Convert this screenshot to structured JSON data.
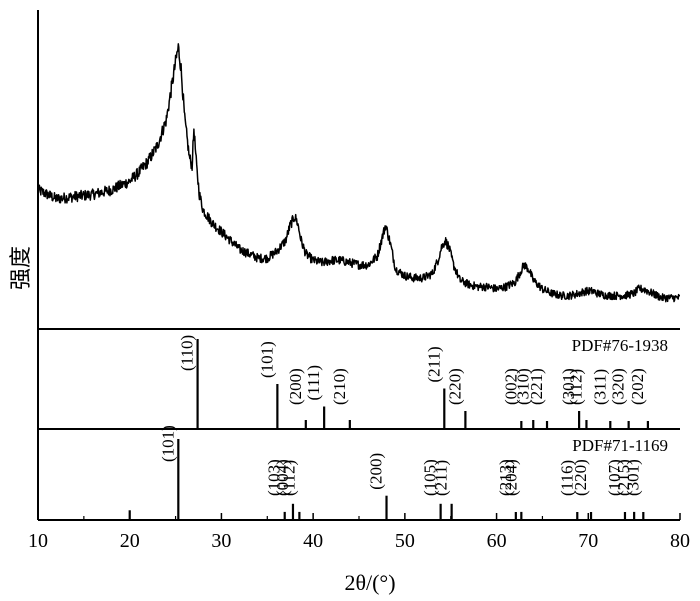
{
  "chart_data": {
    "type": "line",
    "title": "",
    "xlabel": "2θ/(°)",
    "ylabel": "强度",
    "xlim": [
      10,
      80
    ],
    "xticks": [
      10,
      20,
      30,
      40,
      50,
      60,
      70,
      80
    ],
    "grid": false,
    "series": [
      {
        "name": "",
        "x": [
          10,
          12,
          14,
          16,
          18,
          20,
          21,
          22,
          23,
          24,
          24.5,
          25,
          25.3,
          25.6,
          26,
          26.5,
          26.8,
          27,
          27.3,
          27.6,
          28,
          29,
          30,
          31,
          32,
          33,
          34,
          35,
          36,
          37,
          37.5,
          38,
          38.3,
          38.7,
          39.2,
          40,
          41,
          42,
          43,
          44,
          45,
          46,
          47,
          47.5,
          47.9,
          48.4,
          49,
          50,
          51,
          52,
          53,
          53.6,
          54,
          54.4,
          54.8,
          55.3,
          56,
          57,
          58,
          59,
          60,
          61,
          62,
          62.5,
          63,
          63.5,
          64,
          65,
          66,
          67,
          68,
          69,
          69.7,
          70.5,
          71,
          72,
          73,
          74,
          75,
          75.5,
          76,
          77,
          78,
          79,
          80
        ],
        "y": [
          0.5,
          0.46,
          0.47,
          0.48,
          0.5,
          0.54,
          0.58,
          0.63,
          0.7,
          0.82,
          0.95,
          1.08,
          1.15,
          1.05,
          0.82,
          0.65,
          0.61,
          0.78,
          0.6,
          0.48,
          0.41,
          0.35,
          0.31,
          0.27,
          0.23,
          0.21,
          0.19,
          0.19,
          0.22,
          0.27,
          0.34,
          0.38,
          0.35,
          0.27,
          0.21,
          0.18,
          0.17,
          0.18,
          0.18,
          0.17,
          0.16,
          0.16,
          0.2,
          0.28,
          0.34,
          0.26,
          0.14,
          0.11,
          0.1,
          0.1,
          0.12,
          0.18,
          0.24,
          0.27,
          0.24,
          0.16,
          0.09,
          0.07,
          0.06,
          0.06,
          0.05,
          0.06,
          0.08,
          0.12,
          0.16,
          0.14,
          0.09,
          0.05,
          0.03,
          0.02,
          0.02,
          0.03,
          0.04,
          0.04,
          0.03,
          0.02,
          0.02,
          0.02,
          0.03,
          0.05,
          0.05,
          0.03,
          0.01,
          0.01,
          0.01
        ]
      }
    ],
    "references": [
      {
        "name": "PDF#76-1938",
        "peaks": [
          {
            "x": 27.4,
            "i": 1.0,
            "hkl": "(110)"
          },
          {
            "x": 36.1,
            "i": 0.5,
            "hkl": "(101)"
          },
          {
            "x": 39.2,
            "i": 0.1,
            "hkl": "(200)"
          },
          {
            "x": 41.2,
            "i": 0.25,
            "hkl": "(111)"
          },
          {
            "x": 44.0,
            "i": 0.1,
            "hkl": "(210)"
          },
          {
            "x": 54.3,
            "i": 0.45,
            "hkl": "(211)"
          },
          {
            "x": 56.6,
            "i": 0.2,
            "hkl": "(220)"
          },
          {
            "x": 62.7,
            "i": 0.08,
            "hkl": "(002)"
          },
          {
            "x": 64.0,
            "i": 0.1,
            "hkl": "(310)"
          },
          {
            "x": 65.5,
            "i": 0.05,
            "hkl": "(221)"
          },
          {
            "x": 69.0,
            "i": 0.2,
            "hkl": "(301)"
          },
          {
            "x": 69.8,
            "i": 0.1,
            "hkl": "(112)"
          },
          {
            "x": 72.4,
            "i": 0.05,
            "hkl": "(311)"
          },
          {
            "x": 74.4,
            "i": 0.05,
            "hkl": "(320)"
          },
          {
            "x": 76.5,
            "i": 0.06,
            "hkl": "(202)"
          }
        ]
      },
      {
        "name": "PDF#71-1169",
        "peaks": [
          {
            "x": 20.0,
            "i": 0.12,
            "hkl": ""
          },
          {
            "x": 25.3,
            "i": 1.0,
            "hkl": "(101)"
          },
          {
            "x": 36.9,
            "i": 0.1,
            "hkl": "(103)"
          },
          {
            "x": 37.8,
            "i": 0.2,
            "hkl": "(004)"
          },
          {
            "x": 38.5,
            "i": 0.1,
            "hkl": "(112)"
          },
          {
            "x": 48.0,
            "i": 0.3,
            "hkl": "(200)"
          },
          {
            "x": 53.9,
            "i": 0.2,
            "hkl": "(105)"
          },
          {
            "x": 55.1,
            "i": 0.2,
            "hkl": "(211)"
          },
          {
            "x": 62.1,
            "i": 0.05,
            "hkl": "(213)"
          },
          {
            "x": 62.7,
            "i": 0.1,
            "hkl": "(204)"
          },
          {
            "x": 68.8,
            "i": 0.06,
            "hkl": "(116)"
          },
          {
            "x": 70.3,
            "i": 0.06,
            "hkl": "(220)"
          },
          {
            "x": 74.0,
            "i": 0.05,
            "hkl": "(107)"
          },
          {
            "x": 75.0,
            "i": 0.1,
            "hkl": "(215)"
          },
          {
            "x": 76.0,
            "i": 0.06,
            "hkl": "(301)"
          }
        ]
      }
    ]
  }
}
